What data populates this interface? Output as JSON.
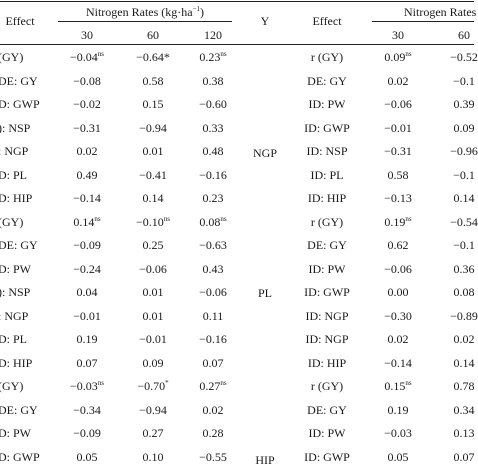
{
  "header": {
    "left_effect": "Effect",
    "nitrogen_rates_left": "Nitrogen Rates (kg·ha",
    "nitrogen_rates_exp": "−1",
    "nitrogen_rates_close": ")",
    "y_label": "Y",
    "right_effect": "Effect",
    "nitrogen_rates_right": "Nitrogen Rates",
    "rates_left": [
      "30",
      "60",
      "120"
    ],
    "rates_right": [
      "30",
      "60"
    ]
  },
  "left_rows": [
    {
      "effect": "(GY)",
      "v30": "−0.04",
      "s30": "ns",
      "v60": "−0.64*",
      "s60": "",
      "v120": "0.23",
      "s120": "ns"
    },
    {
      "effect": "DE: GY",
      "v30": "−0.08",
      "s30": "",
      "v60": "0.58",
      "s60": "",
      "v120": "0.38",
      "s120": ""
    },
    {
      "effect": "D: GWP",
      "v30": "−0.02",
      "s30": "",
      "v60": "0.15",
      "s60": "",
      "v120": "−0.60",
      "s120": ""
    },
    {
      "effect": "): NSP",
      "v30": "−0.31",
      "s30": "",
      "v60": "−0.94",
      "s60": "",
      "v120": "0.33",
      "s120": ""
    },
    {
      "effect": ": NGP",
      "v30": "0.02",
      "s30": "",
      "v60": "0.01",
      "s60": "",
      "v120": "0.48",
      "s120": ""
    },
    {
      "effect": "D: PL",
      "v30": "0.49",
      "s30": "",
      "v60": "−0.41",
      "s60": "",
      "v120": "−0.16",
      "s120": ""
    },
    {
      "effect": "D: HIP",
      "v30": "−0.14",
      "s30": "",
      "v60": "0.14",
      "s60": "",
      "v120": "0.23",
      "s120": ""
    },
    {
      "effect": "(GY)",
      "v30": "0.14",
      "s30": "ns",
      "v60": "−0.10",
      "s60": "ns",
      "v120": "0.08",
      "s120": "ns"
    },
    {
      "effect": "DE: GY",
      "v30": "−0.09",
      "s30": "",
      "v60": "0.25",
      "s60": "",
      "v120": "−0.63",
      "s120": ""
    },
    {
      "effect": "D: PW",
      "v30": "−0.24",
      "s30": "",
      "v60": "−0.06",
      "s60": "",
      "v120": "0.43",
      "s120": ""
    },
    {
      "effect": "): NSP",
      "v30": "0.04",
      "s30": "",
      "v60": "0.01",
      "s60": "",
      "v120": "−0.06",
      "s120": ""
    },
    {
      "effect": ": NGP",
      "v30": "−0.01",
      "s30": "",
      "v60": "0.01",
      "s60": "",
      "v120": "0.11",
      "s120": ""
    },
    {
      "effect": "D: PL",
      "v30": "0.19",
      "s30": "",
      "v60": "−0.01",
      "s60": "",
      "v120": "−0.16",
      "s120": ""
    },
    {
      "effect": "D: HIP",
      "v30": "0.07",
      "s30": "",
      "v60": "0.09",
      "s60": "",
      "v120": "0.07",
      "s120": ""
    },
    {
      "effect": "(GY)",
      "v30": "−0.03",
      "s30": "ns",
      "v60": "−0.70",
      "s60": "*",
      "v120": "0.27",
      "s120": "ns"
    },
    {
      "effect": "DE: GY",
      "v30": "−0.34",
      "s30": "",
      "v60": "−0.94",
      "s60": "",
      "v120": "0.02",
      "s120": ""
    },
    {
      "effect": "D: PW",
      "v30": "−0.09",
      "s30": "",
      "v60": "0.27",
      "s60": "",
      "v120": "0.28",
      "s120": ""
    },
    {
      "effect": "D: GWP",
      "v30": "0.05",
      "s30": "",
      "v60": "0.10",
      "s60": "",
      "v120": "−0.55",
      "s120": ""
    }
  ],
  "y_groups": [
    "NGP",
    "PL",
    "HIP"
  ],
  "right_rows": [
    {
      "effect": "r (GY)",
      "v30": "0.09",
      "s30": "ns",
      "v60": "−0.52",
      "s60": ""
    },
    {
      "effect": "DE: GY",
      "v30": "0.02",
      "s30": "",
      "v60": "−0.1",
      "s60": ""
    },
    {
      "effect": "ID: PW",
      "v30": "−0.06",
      "s30": "",
      "v60": "0.39",
      "s60": ""
    },
    {
      "effect": "ID: GWP",
      "v30": "−0.01",
      "s30": "",
      "v60": "0.09",
      "s60": ""
    },
    {
      "effect": "ID: NSP",
      "v30": "−0.31",
      "s30": "",
      "v60": "−0.96",
      "s60": ""
    },
    {
      "effect": "ID: PL",
      "v30": "0.58",
      "s30": "",
      "v60": "−0.1",
      "s60": ""
    },
    {
      "effect": "ID: HIP",
      "v30": "−0.13",
      "s30": "",
      "v60": "0.14",
      "s60": ""
    },
    {
      "effect": "r (GY)",
      "v30": "0.19",
      "s30": "ns",
      "v60": "−0.54",
      "s60": ""
    },
    {
      "effect": "DE: GY",
      "v30": "0.62",
      "s30": "",
      "v60": "−0.1",
      "s60": ""
    },
    {
      "effect": "ID: PW",
      "v30": "−0.06",
      "s30": "",
      "v60": "0.36",
      "s60": ""
    },
    {
      "effect": "ID: GWP",
      "v30": "0.00",
      "s30": "",
      "v60": "0.08",
      "s60": ""
    },
    {
      "effect": "ID: NGP",
      "v30": "−0.30",
      "s30": "",
      "v60": "−0.89",
      "s60": ""
    },
    {
      "effect": "ID: NGP",
      "v30": "0.02",
      "s30": "",
      "v60": "0.02",
      "s60": ""
    },
    {
      "effect": "ID: HIP",
      "v30": "−0.14",
      "s30": "",
      "v60": "0.14",
      "s60": ""
    },
    {
      "effect": "r (GY)",
      "v30": "0.15",
      "s30": "ns",
      "v60": "0.78",
      "s60": ""
    },
    {
      "effect": "DE: GY",
      "v30": "0.19",
      "s30": "",
      "v60": "0.34",
      "s60": ""
    },
    {
      "effect": "ID: PW",
      "v30": "−0.03",
      "s30": "",
      "v60": "0.13",
      "s60": ""
    },
    {
      "effect": "ID: GWP",
      "v30": "0.05",
      "s30": "",
      "v60": "0.07",
      "s60": ""
    }
  ]
}
